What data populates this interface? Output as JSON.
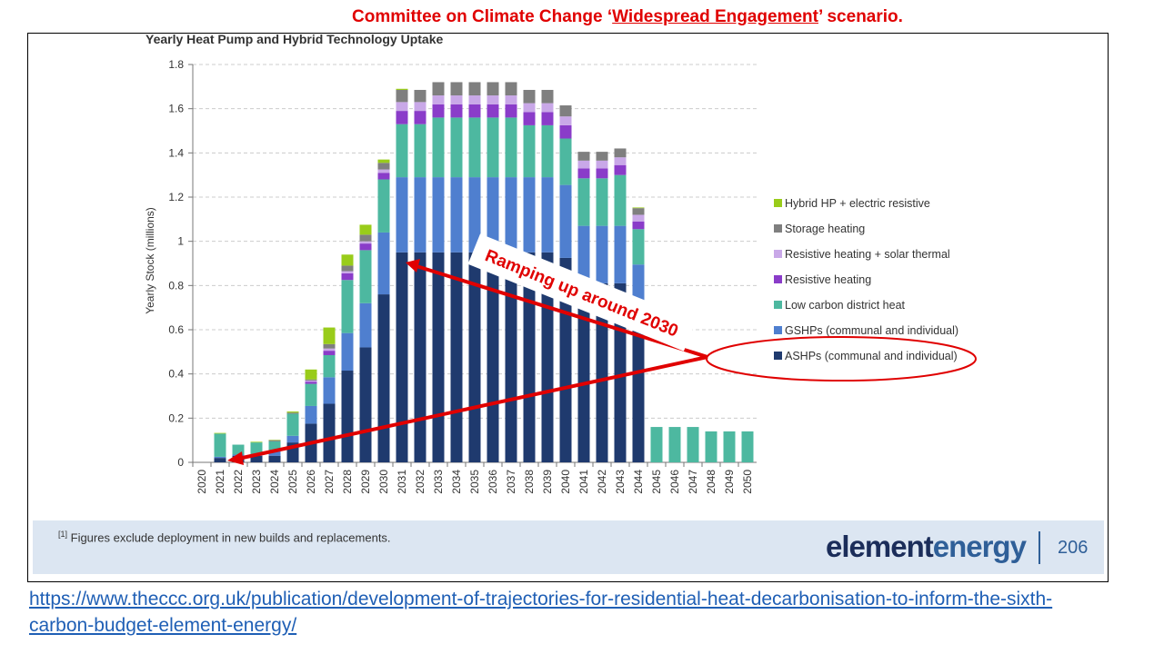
{
  "heading": {
    "pre": "Committee on Climate Change ‘",
    "emph": "Widespread Engagement",
    "post": "’ scenario."
  },
  "chart_data": {
    "type": "bar",
    "stacked": true,
    "title": "Yearly Heat Pump and Hybrid Technology Uptake",
    "xlabel": "",
    "ylabel": "Yearly Stock (millions)",
    "ylim": [
      0,
      1.8
    ],
    "yticks": [
      "0",
      "0.2",
      "0.4",
      "0.6",
      "0.8",
      "1",
      "1.2",
      "1.4",
      "1.6",
      "1.8"
    ],
    "grid": true,
    "legend_position": "right",
    "categories": [
      "2020",
      "2021",
      "2022",
      "2023",
      "2024",
      "2025",
      "2026",
      "2027",
      "2028",
      "2029",
      "2030",
      "2031",
      "2032",
      "2033",
      "2034",
      "2035",
      "2036",
      "2037",
      "2038",
      "2039",
      "2040",
      "2041",
      "2042",
      "2043",
      "2044",
      "2045",
      "2046",
      "2047",
      "2048",
      "2049",
      "2050"
    ],
    "series": [
      {
        "name": "ASHPs (communal and individual)",
        "color": "#1f3a6e",
        "values": [
          0,
          0.02,
          0.03,
          0.03,
          0.03,
          0.09,
          0.175,
          0.265,
          0.415,
          0.52,
          0.76,
          0.95,
          0.95,
          0.95,
          0.95,
          0.95,
          0.95,
          0.95,
          0.95,
          0.95,
          0.925,
          0.81,
          0.81,
          0.81,
          0.6,
          0,
          0,
          0,
          0,
          0,
          0
        ]
      },
      {
        "name": "GSHPs (communal and individual)",
        "color": "#4f7fcf",
        "values": [
          0,
          0.005,
          0.005,
          0.005,
          0.02,
          0.03,
          0.08,
          0.12,
          0.17,
          0.2,
          0.28,
          0.34,
          0.34,
          0.34,
          0.34,
          0.34,
          0.34,
          0.34,
          0.34,
          0.34,
          0.33,
          0.26,
          0.26,
          0.26,
          0.295,
          0,
          0,
          0,
          0,
          0,
          0
        ]
      },
      {
        "name": "Low carbon district heat",
        "color": "#4db8a0",
        "values": [
          0,
          0.105,
          0.045,
          0.055,
          0.045,
          0.1,
          0.1,
          0.1,
          0.24,
          0.24,
          0.24,
          0.24,
          0.24,
          0.27,
          0.27,
          0.27,
          0.27,
          0.27,
          0.235,
          0.235,
          0.21,
          0.215,
          0.215,
          0.23,
          0.16,
          0.16,
          0.16,
          0.16,
          0.14,
          0.14,
          0.14
        ]
      },
      {
        "name": "Resistive heating",
        "color": "#8a3cc9",
        "values": [
          0,
          0,
          0,
          0,
          0,
          0,
          0.01,
          0.02,
          0.03,
          0.03,
          0.03,
          0.06,
          0.06,
          0.06,
          0.06,
          0.06,
          0.06,
          0.06,
          0.06,
          0.06,
          0.06,
          0.045,
          0.045,
          0.045,
          0.035,
          0,
          0,
          0,
          0,
          0,
          0
        ]
      },
      {
        "name": "Resistive heating + solar thermal",
        "color": "#c9a8e8",
        "values": [
          0,
          0,
          0,
          0,
          0,
          0,
          0.005,
          0.01,
          0.01,
          0.01,
          0.015,
          0.04,
          0.04,
          0.04,
          0.04,
          0.04,
          0.04,
          0.04,
          0.04,
          0.04,
          0.04,
          0.035,
          0.035,
          0.035,
          0.03,
          0,
          0,
          0,
          0,
          0,
          0
        ]
      },
      {
        "name": "Storage heating",
        "color": "#7f7f7f",
        "values": [
          0,
          0,
          0,
          0,
          0.005,
          0.005,
          0.005,
          0.02,
          0.025,
          0.03,
          0.03,
          0.055,
          0.055,
          0.06,
          0.06,
          0.06,
          0.06,
          0.06,
          0.06,
          0.06,
          0.05,
          0.04,
          0.04,
          0.04,
          0.03,
          0,
          0,
          0,
          0,
          0,
          0
        ]
      },
      {
        "name": "Hybrid HP + electric resistive",
        "color": "#99cc1a",
        "values": [
          0,
          0.003,
          0,
          0.003,
          0.002,
          0.005,
          0.045,
          0.075,
          0.05,
          0.045,
          0.015,
          0.005,
          0,
          0,
          0,
          0,
          0,
          0,
          0,
          0,
          0,
          0,
          0,
          0,
          0.003,
          0,
          0,
          0,
          0,
          0,
          0
        ]
      }
    ],
    "annotations": {
      "callout": "Ramping up around 2030",
      "color": "#e00000"
    }
  },
  "footer": {
    "footnote_mark": "[1]",
    "footnote": " Figures exclude deployment in new builds and replacements.",
    "logo_a": "element",
    "logo_b": "energy",
    "page": "206"
  },
  "link": "https://www.theccc.org.uk/publication/development-of-trajectories-for-residential-heat-decarbonisation-to-inform-the-sixth-carbon-budget-element-energy/"
}
